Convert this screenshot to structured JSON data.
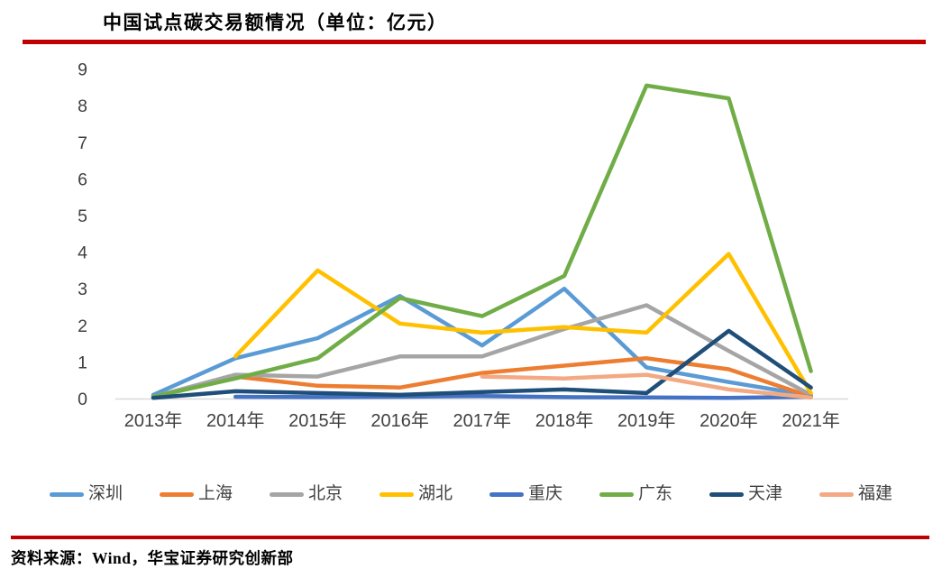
{
  "page": {
    "background": "#FFFFFF",
    "accent_rule_color": "#C00000",
    "axis_label_color": "#404040",
    "baseline_color": "#D9D9D9"
  },
  "title": "中国试点碳交易额情况（单位：亿元）",
  "source": "资料来源：Wind，华宝证券研究创新部",
  "chart_data": {
    "type": "line",
    "title": "中国试点碳交易额情况（单位：亿元）",
    "unit": "亿元",
    "xlabel": "",
    "ylabel": "",
    "ylim": [
      0,
      9
    ],
    "yticks": [
      0,
      1,
      2,
      3,
      4,
      5,
      6,
      7,
      8,
      9
    ],
    "grid": false,
    "legend_position": "bottom",
    "categories": [
      "2013年",
      "2014年",
      "2015年",
      "2016年",
      "2017年",
      "2018年",
      "2019年",
      "2020年",
      "2021年"
    ],
    "series": [
      {
        "name": "深圳",
        "color": "#5B9BD5",
        "values": [
          0.1,
          1.1,
          1.65,
          2.8,
          1.45,
          3.0,
          0.85,
          0.45,
          0.08
        ]
      },
      {
        "name": "上海",
        "color": "#ED7D31",
        "values": [
          0.05,
          0.6,
          0.35,
          0.3,
          0.7,
          0.9,
          1.1,
          0.8,
          0.05
        ]
      },
      {
        "name": "北京",
        "color": "#A5A5A5",
        "values": [
          0.05,
          0.65,
          0.6,
          1.15,
          1.15,
          1.9,
          2.55,
          1.3,
          0.1
        ]
      },
      {
        "name": "湖北",
        "color": "#FFC000",
        "values": [
          null,
          1.15,
          3.5,
          2.05,
          1.8,
          1.95,
          1.8,
          3.95,
          0.15
        ]
      },
      {
        "name": "重庆",
        "color": "#4472C4",
        "values": [
          null,
          0.05,
          0.04,
          0.05,
          0.07,
          0.04,
          0.03,
          0.02,
          0.05
        ]
      },
      {
        "name": "广东",
        "color": "#70AD47",
        "values": [
          0.05,
          0.55,
          1.1,
          2.75,
          2.25,
          3.35,
          8.55,
          8.2,
          0.75
        ]
      },
      {
        "name": "天津",
        "color": "#1F4E79",
        "values": [
          0.02,
          0.2,
          0.15,
          0.1,
          0.18,
          0.25,
          0.15,
          1.85,
          0.3
        ]
      },
      {
        "name": "福建",
        "color": "#F3A983",
        "values": [
          null,
          null,
          null,
          null,
          0.6,
          0.55,
          0.65,
          0.25,
          0.03
        ]
      }
    ]
  }
}
